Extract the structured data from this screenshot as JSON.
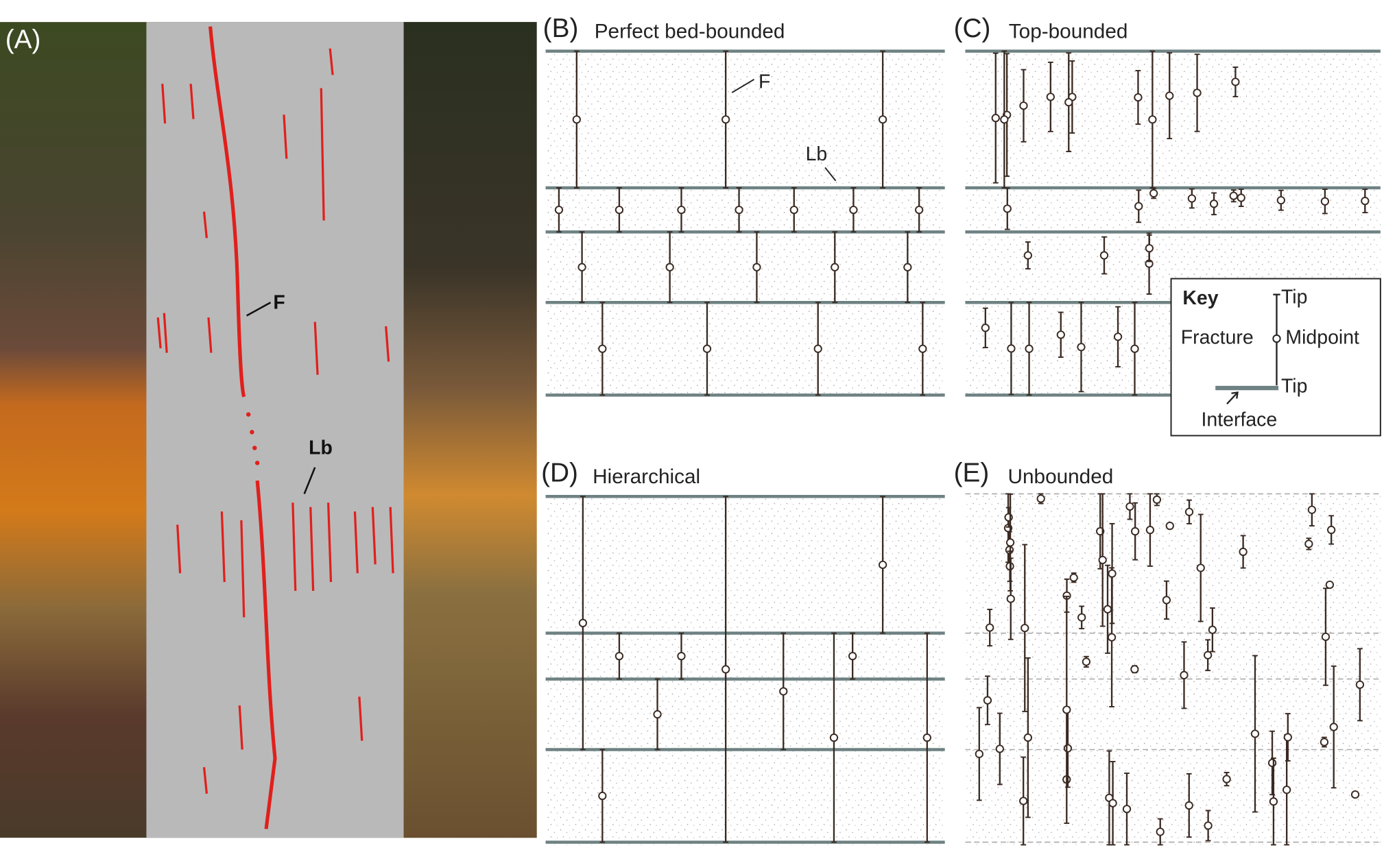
{
  "panels": [
    {
      "label": "(A)",
      "annotations": [
        "F",
        "Lb"
      ]
    },
    {
      "label": "(B)",
      "title": "Perfect bed-bounded",
      "annotations": [
        "F",
        "Lb"
      ]
    },
    {
      "label": "(C)",
      "title": "Top-bounded",
      "key": {
        "title": "Key",
        "tip_top": "Tip",
        "fracture": "Fracture",
        "midpoint": "Midpoint",
        "tip_bottom": "Tip",
        "interface": "Interface"
      }
    },
    {
      "label": "(D)",
      "title": "Hierarchical"
    },
    {
      "label": "(E)",
      "title": "Unbounded"
    }
  ]
}
